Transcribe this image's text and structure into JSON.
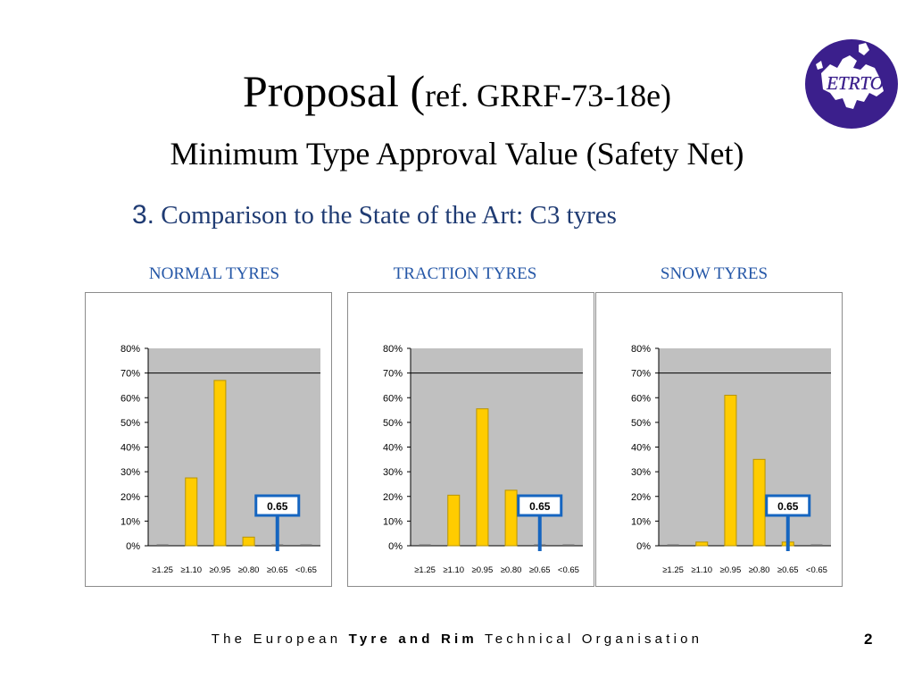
{
  "title": {
    "prefix": "Proposal (",
    "ref": "ref. GRRF-73-18e)"
  },
  "subtitle": "Minimum Type Approval Value (Safety Net)",
  "section": {
    "number": "3.",
    "text": "Comparison to the State of the Art: C3 tyres"
  },
  "footer": {
    "lead": "The European",
    "bold": "Tyre and Rim",
    "tail": "Technical Organisation",
    "page_number": "2"
  },
  "logo": {
    "text": "ETRTO",
    "color": "#3b1f8c"
  },
  "colors": {
    "bar": "#ffcc00",
    "bar_edge": "#b89400",
    "plot_bg": "#c0c0c0",
    "marker": "#1565c0"
  },
  "chart_data": [
    {
      "type": "bar",
      "title": "NORMAL TYRES",
      "categories": [
        "≥1.25",
        "≥1.10",
        "≥0.95",
        "≥0.80",
        "≥0.65",
        "<0.65"
      ],
      "values": [
        0,
        27.5,
        67,
        3.5,
        0,
        0
      ],
      "ylim": [
        0,
        80
      ],
      "yticks": [
        "0%",
        "10%",
        "20%",
        "30%",
        "40%",
        "50%",
        "60%",
        "70%",
        "80%"
      ],
      "reference_line": 70,
      "marker": {
        "label": "0.65",
        "category": "≥0.65"
      }
    },
    {
      "type": "bar",
      "title": "TRACTION TYRES",
      "categories": [
        "≥1.25",
        "≥1.10",
        "≥0.95",
        "≥0.80",
        "≥0.65",
        "<0.65"
      ],
      "values": [
        0,
        20.5,
        55.5,
        22.5,
        0,
        0
      ],
      "ylim": [
        0,
        80
      ],
      "yticks": [
        "0%",
        "10%",
        "20%",
        "30%",
        "40%",
        "50%",
        "60%",
        "70%",
        "80%"
      ],
      "reference_line": 70,
      "marker": {
        "label": "0.65",
        "category": "≥0.65"
      }
    },
    {
      "type": "bar",
      "title": "SNOW TYRES",
      "categories": [
        "≥1.25",
        "≥1.10",
        "≥0.95",
        "≥0.80",
        "≥0.65",
        "<0.65"
      ],
      "values": [
        0,
        1.5,
        61,
        35,
        1.5,
        0
      ],
      "ylim": [
        0,
        80
      ],
      "yticks": [
        "0%",
        "10%",
        "20%",
        "30%",
        "40%",
        "50%",
        "60%",
        "70%",
        "80%"
      ],
      "reference_line": 70,
      "marker": {
        "label": "0.65",
        "category": "≥0.65"
      }
    }
  ]
}
